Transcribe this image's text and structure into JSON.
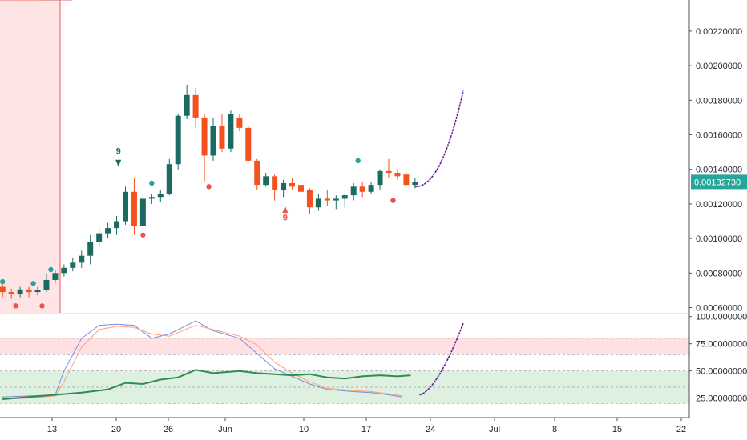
{
  "chart_data": {
    "type": "candlestick",
    "colors": {
      "up": "#26a69a",
      "up_dark": "#1b6b63",
      "down": "#ef5350",
      "down_orange": "#f4511e",
      "cloud_green": "#a5d6a7",
      "cloud_red": "#ef9a9a",
      "ma_violet": "#7e57c2",
      "ma_pink": "#e57373",
      "baseline": "#ff8a65",
      "price_line": "#26a69a",
      "stoch_k": "#7b8cde",
      "stoch_d": "#ff9e80",
      "rsi": "#2e8b57",
      "zone_red": "#ffcdd2",
      "zone_green": "#c8e6c9",
      "projection": "#6a1b9a"
    },
    "x_ticks": [
      "13",
      "20",
      "26",
      "Jun",
      "10",
      "17",
      "24",
      "Jul",
      "8",
      "15",
      "22"
    ],
    "y_ticks": [
      "0.00220000",
      "0.00200000",
      "0.00180000",
      "0.00160000",
      "0.00140000",
      "0.00120000",
      "0.00100000",
      "0.00080000",
      "0.00060000"
    ],
    "y_range": [
      0.00057,
      0.00238
    ],
    "current_price": "0.00132730",
    "current_price_value": 0.0013273,
    "osc_ticks": [
      "100.00000000",
      "75.00000000",
      "50.00000000",
      "25.00000000"
    ],
    "osc_range": [
      10,
      102
    ],
    "osc_bands": [
      {
        "from": 65,
        "to": 80,
        "color": "red"
      },
      {
        "from": 20,
        "to": 50,
        "color": "green"
      }
    ],
    "osc_dashed_levels": [
      80,
      65,
      50,
      35,
      20
    ],
    "candles": [
      {
        "d": 0,
        "o": 0.00072,
        "h": 0.00075,
        "l": 0.00066,
        "c": 0.00069
      },
      {
        "d": 1,
        "o": 0.00069,
        "h": 0.00071,
        "l": 0.00065,
        "c": 0.00068
      },
      {
        "d": 2,
        "o": 0.00068,
        "h": 0.00072,
        "l": 0.00066,
        "c": 0.000705
      },
      {
        "d": 3,
        "o": 0.000705,
        "h": 0.00072,
        "l": 0.00066,
        "c": 0.00069
      },
      {
        "d": 4,
        "o": 0.00069,
        "h": 0.00072,
        "l": 0.00067,
        "c": 0.0007
      },
      {
        "d": 5,
        "o": 0.0007,
        "h": 0.0008,
        "l": 0.00069,
        "c": 0.00076
      },
      {
        "d": 6,
        "o": 0.00076,
        "h": 0.00082,
        "l": 0.00074,
        "c": 0.0008
      },
      {
        "d": 7,
        "o": 0.0008,
        "h": 0.00085,
        "l": 0.00078,
        "c": 0.00083
      },
      {
        "d": 8,
        "o": 0.00083,
        "h": 0.00089,
        "l": 0.00081,
        "c": 0.00086
      },
      {
        "d": 9,
        "o": 0.00086,
        "h": 0.00093,
        "l": 0.00083,
        "c": 0.0009
      },
      {
        "d": 10,
        "o": 0.0009,
        "h": 0.00102,
        "l": 0.00085,
        "c": 0.00098
      },
      {
        "d": 11,
        "o": 0.00098,
        "h": 0.00106,
        "l": 0.00095,
        "c": 0.00103
      },
      {
        "d": 12,
        "o": 0.00103,
        "h": 0.00109,
        "l": 0.001,
        "c": 0.00106
      },
      {
        "d": 13,
        "o": 0.00106,
        "h": 0.00113,
        "l": 0.00102,
        "c": 0.0011
      },
      {
        "d": 14,
        "o": 0.0011,
        "h": 0.0013,
        "l": 0.00108,
        "c": 0.00127
      },
      {
        "d": 15,
        "o": 0.00127,
        "h": 0.00135,
        "l": 0.00102,
        "c": 0.00107
      },
      {
        "d": 16,
        "o": 0.00107,
        "h": 0.00126,
        "l": 0.00106,
        "c": 0.00123
      },
      {
        "d": 17,
        "o": 0.00123,
        "h": 0.00126,
        "l": 0.0012,
        "c": 0.00124
      },
      {
        "d": 18,
        "o": 0.00124,
        "h": 0.00128,
        "l": 0.00121,
        "c": 0.00126
      },
      {
        "d": 19,
        "o": 0.00126,
        "h": 0.00146,
        "l": 0.00125,
        "c": 0.00143
      },
      {
        "d": 20,
        "o": 0.00143,
        "h": 0.00172,
        "l": 0.0014,
        "c": 0.00171
      },
      {
        "d": 21,
        "o": 0.00171,
        "h": 0.00189,
        "l": 0.00169,
        "c": 0.00183
      },
      {
        "d": 22,
        "o": 0.00183,
        "h": 0.00187,
        "l": 0.00164,
        "c": 0.0017
      },
      {
        "d": 23,
        "o": 0.0017,
        "h": 0.00172,
        "l": 0.00133,
        "c": 0.00148
      },
      {
        "d": 24,
        "o": 0.00148,
        "h": 0.0017,
        "l": 0.00145,
        "c": 0.00165
      },
      {
        "d": 25,
        "o": 0.00165,
        "h": 0.00172,
        "l": 0.0015,
        "c": 0.00152
      },
      {
        "d": 26,
        "o": 0.00152,
        "h": 0.00174,
        "l": 0.0015,
        "c": 0.00172
      },
      {
        "d": 27,
        "o": 0.0017,
        "h": 0.00172,
        "l": 0.00162,
        "c": 0.00164
      },
      {
        "d": 28,
        "o": 0.00164,
        "h": 0.00165,
        "l": 0.00144,
        "c": 0.00145
      },
      {
        "d": 29,
        "o": 0.00145,
        "h": 0.00146,
        "l": 0.00128,
        "c": 0.00131
      },
      {
        "d": 30,
        "o": 0.00131,
        "h": 0.00138,
        "l": 0.0013,
        "c": 0.00136
      },
      {
        "d": 31,
        "o": 0.00136,
        "h": 0.00137,
        "l": 0.00122,
        "c": 0.00128
      },
      {
        "d": 32,
        "o": 0.00128,
        "h": 0.00134,
        "l": 0.00124,
        "c": 0.00132
      },
      {
        "d": 33,
        "o": 0.00132,
        "h": 0.00135,
        "l": 0.00128,
        "c": 0.0013
      },
      {
        "d": 34,
        "o": 0.00131,
        "h": 0.00133,
        "l": 0.00126,
        "c": 0.00127
      },
      {
        "d": 35,
        "o": 0.00128,
        "h": 0.00129,
        "l": 0.00114,
        "c": 0.00118
      },
      {
        "d": 36,
        "o": 0.00118,
        "h": 0.00126,
        "l": 0.00116,
        "c": 0.00123
      },
      {
        "d": 37,
        "o": 0.00123,
        "h": 0.00128,
        "l": 0.00119,
        "c": 0.00122
      },
      {
        "d": 38,
        "o": 0.00122,
        "h": 0.00125,
        "l": 0.00117,
        "c": 0.00123
      },
      {
        "d": 39,
        "o": 0.00123,
        "h": 0.00126,
        "l": 0.00118,
        "c": 0.00125
      },
      {
        "d": 40,
        "o": 0.00125,
        "h": 0.00132,
        "l": 0.00122,
        "c": 0.0013
      },
      {
        "d": 41,
        "o": 0.0013,
        "h": 0.00133,
        "l": 0.00124,
        "c": 0.00127
      },
      {
        "d": 42,
        "o": 0.00127,
        "h": 0.00133,
        "l": 0.00126,
        "c": 0.00131
      },
      {
        "d": 43,
        "o": 0.00131,
        "h": 0.0014,
        "l": 0.00128,
        "c": 0.00139
      },
      {
        "d": 44,
        "o": 0.00139,
        "h": 0.00146,
        "l": 0.00135,
        "c": 0.00138
      },
      {
        "d": 45,
        "o": 0.00138,
        "h": 0.0014,
        "l": 0.00134,
        "c": 0.00136
      },
      {
        "d": 46,
        "o": 0.00137,
        "h": 0.00138,
        "l": 0.0013,
        "c": 0.00131
      },
      {
        "d": 47,
        "o": 0.00131,
        "h": 0.00135,
        "l": 0.00129,
        "c": 0.001327
      }
    ]
  }
}
